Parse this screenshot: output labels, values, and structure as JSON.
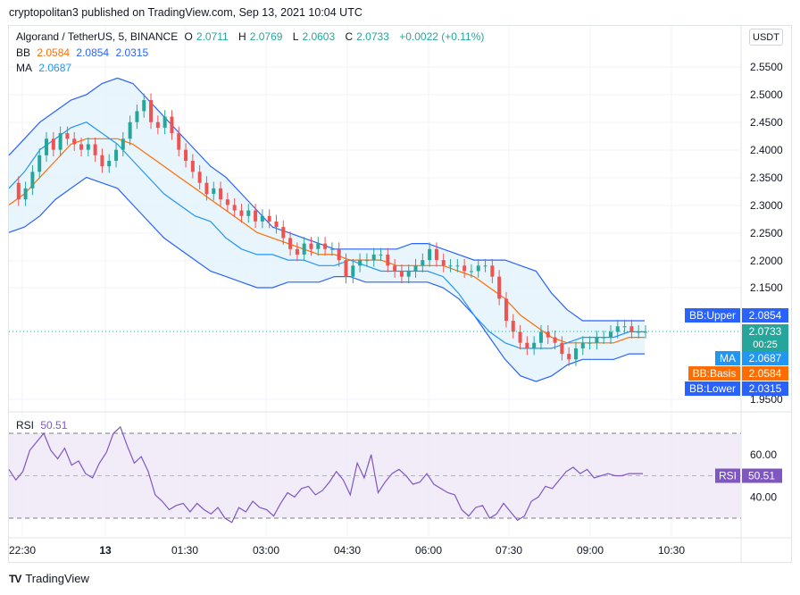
{
  "caption": "cryptopolitan3 published on TradingView.com, Sep 13, 2021 10:04 UTC",
  "unit": "USDT",
  "legend": {
    "symbol": "Algorand / TetherUS, 5, BINANCE",
    "o_label": "O",
    "o_value": "2.0711",
    "h_label": "H",
    "h_value": "2.0769",
    "l_label": "L",
    "l_value": "2.0603",
    "c_label": "C",
    "c_value": "2.0733",
    "change": "+0.0022 (+0.11%)",
    "bb_label": "BB",
    "bb_basis": "2.0584",
    "bb_upper": "2.0854",
    "bb_lower": "2.0315",
    "ma_label": "MA",
    "ma_value": "2.0687",
    "rsi_label": "RSI",
    "rsi_value": "50.51"
  },
  "price_labels": {
    "bb_upper_name": "BB:Upper",
    "bb_upper_value": "2.0854",
    "last_value": "2.0733",
    "countdown": "00:25",
    "ma_name": "MA",
    "ma_value": "2.0687",
    "bb_basis_name": "BB:Basis",
    "bb_basis_value": "2.0584",
    "bb_lower_name": "BB:Lower",
    "bb_lower_value": "2.0315",
    "rsi_name": "RSI",
    "rsi_value": "50.51"
  },
  "footer": {
    "brand": "TradingView",
    "logo": "TV"
  },
  "colors": {
    "up": "#26a69a",
    "down": "#ef5350",
    "bb_band": "#2962ff",
    "bb_fill": "#e3f2fd",
    "bb_basis": "#ff6d00",
    "ma": "#2196f3",
    "rsi": "#7e57c2",
    "rsi_fill": "#ede7f6"
  },
  "chart_data": {
    "type": "candlestick",
    "price_axis": {
      "min": 1.95,
      "max": 2.55,
      "ticks": [
        "2.5500",
        "2.5000",
        "2.4500",
        "2.4000",
        "2.3500",
        "2.3000",
        "2.2500",
        "2.2000",
        "2.1500",
        "1.9500"
      ]
    },
    "time_axis": {
      "ticks": [
        "22:30",
        "13",
        "01:30",
        "03:00",
        "04:30",
        "06:00",
        "07:30",
        "09:00",
        "10:30"
      ]
    },
    "rsi_axis": {
      "ticks": [
        "60.00",
        "40.00"
      ],
      "upper_band": 70,
      "lower_band": 30,
      "mid": 50
    },
    "price": [
      2.34,
      2.31,
      2.33,
      2.36,
      2.39,
      2.42,
      2.4,
      2.43,
      2.42,
      2.41,
      2.4,
      2.41,
      2.39,
      2.37,
      2.38,
      2.4,
      2.42,
      2.45,
      2.47,
      2.49,
      2.45,
      2.44,
      2.46,
      2.43,
      2.4,
      2.38,
      2.36,
      2.34,
      2.32,
      2.33,
      2.31,
      2.3,
      2.29,
      2.28,
      2.29,
      2.27,
      2.28,
      2.27,
      2.26,
      2.24,
      2.22,
      2.21,
      2.23,
      2.22,
      2.23,
      2.22,
      2.22,
      2.2,
      2.17,
      2.19,
      2.2,
      2.2,
      2.21,
      2.21,
      2.19,
      2.18,
      2.17,
      2.18,
      2.19,
      2.2,
      2.22,
      2.2,
      2.19,
      2.19,
      2.19,
      2.18,
      2.18,
      2.19,
      2.19,
      2.17,
      2.13,
      2.09,
      2.07,
      2.05,
      2.04,
      2.05,
      2.07,
      2.06,
      2.05,
      2.03,
      2.02,
      2.04,
      2.05,
      2.05,
      2.06,
      2.06,
      2.07,
      2.08,
      2.08,
      2.07,
      2.07,
      2.07
    ],
    "bb_upper": [
      2.39,
      2.42,
      2.45,
      2.47,
      2.49,
      2.5,
      2.52,
      2.53,
      2.52,
      2.49,
      2.46,
      2.43,
      2.4,
      2.37,
      2.35,
      2.32,
      2.29,
      2.26,
      2.25,
      2.24,
      2.23,
      2.22,
      2.22,
      2.22,
      2.22,
      2.22,
      2.23,
      2.23,
      2.22,
      2.21,
      2.2,
      2.2,
      2.2,
      2.19,
      2.18,
      2.14,
      2.11,
      2.09,
      2.09,
      2.09,
      2.09,
      2.09
    ],
    "bb_basis": [
      2.3,
      2.32,
      2.35,
      2.38,
      2.41,
      2.42,
      2.42,
      2.42,
      2.41,
      2.39,
      2.37,
      2.35,
      2.33,
      2.31,
      2.29,
      2.27,
      2.25,
      2.24,
      2.23,
      2.22,
      2.21,
      2.21,
      2.2,
      2.2,
      2.2,
      2.19,
      2.19,
      2.19,
      2.19,
      2.18,
      2.17,
      2.15,
      2.13,
      2.1,
      2.08,
      2.06,
      2.05,
      2.05,
      2.05,
      2.05,
      2.06,
      2.06
    ],
    "bb_lower": [
      2.25,
      2.26,
      2.28,
      2.31,
      2.33,
      2.35,
      2.34,
      2.33,
      2.3,
      2.27,
      2.24,
      2.22,
      2.2,
      2.18,
      2.17,
      2.16,
      2.15,
      2.15,
      2.16,
      2.16,
      2.16,
      2.17,
      2.17,
      2.16,
      2.16,
      2.16,
      2.16,
      2.16,
      2.15,
      2.13,
      2.1,
      2.06,
      2.02,
      1.99,
      1.98,
      1.99,
      2.01,
      2.02,
      2.02,
      2.02,
      2.03,
      2.03
    ],
    "ma": [
      2.33,
      2.36,
      2.4,
      2.42,
      2.44,
      2.45,
      2.43,
      2.41,
      2.38,
      2.35,
      2.32,
      2.3,
      2.28,
      2.27,
      2.24,
      2.22,
      2.21,
      2.21,
      2.2,
      2.2,
      2.19,
      2.19,
      2.2,
      2.19,
      2.18,
      2.18,
      2.18,
      2.18,
      2.17,
      2.14,
      2.1,
      2.07,
      2.05,
      2.04,
      2.04,
      2.04,
      2.05,
      2.06,
      2.06,
      2.06,
      2.07,
      2.07
    ],
    "rsi": [
      53,
      48,
      52,
      62,
      66,
      70,
      62,
      58,
      63,
      55,
      57,
      51,
      49,
      56,
      61,
      70,
      73,
      64,
      56,
      59,
      52,
      41,
      38,
      34,
      36,
      37,
      33,
      37,
      34,
      32,
      35,
      30,
      28,
      35,
      33,
      38,
      35,
      34,
      31,
      37,
      42,
      40,
      44,
      45,
      41,
      43,
      47,
      52,
      48,
      41,
      56,
      49,
      60,
      42,
      47,
      51,
      53,
      50,
      46,
      47,
      51,
      46,
      44,
      42,
      41,
      34,
      31,
      35,
      36,
      30,
      32,
      37,
      33,
      29,
      31,
      38,
      40,
      45,
      44,
      48,
      52,
      54,
      51,
      53,
      49,
      50,
      51,
      50,
      50,
      51,
      51,
      51
    ]
  }
}
